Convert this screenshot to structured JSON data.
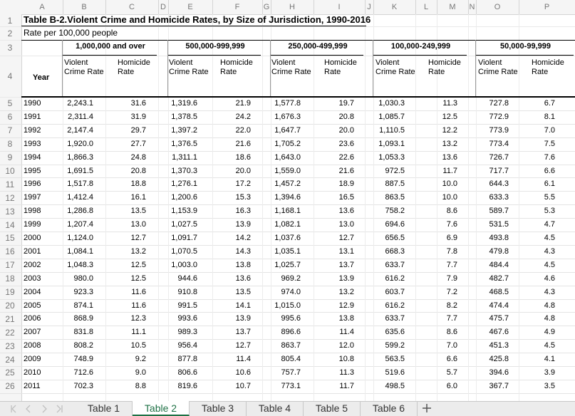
{
  "column_letters": [
    "A",
    "B",
    "C",
    "D",
    "E",
    "F",
    "G",
    "H",
    "I",
    "J",
    "K",
    "L",
    "M",
    "N",
    "O",
    "P"
  ],
  "row_numbers": [
    1,
    2,
    3,
    4,
    5,
    6,
    7,
    8,
    9,
    10,
    11,
    12,
    13,
    14,
    15,
    16,
    17,
    18,
    19,
    20,
    21,
    22,
    23,
    24,
    25,
    26
  ],
  "table": {
    "title": "Table B-2.Violent Crime and Homicide Rates, by Size of Jurisdiction, 1990-2016",
    "subtitle": "Rate per 100,000 people",
    "year_header": "Year",
    "groups": [
      {
        "label": "1,000,000 and over",
        "columns": [
          "Violent Crime Rate",
          "Homicide Rate"
        ]
      },
      {
        "label": "500,000-999,999",
        "columns": [
          "Violent Crime Rate",
          "Homicide Rate"
        ]
      },
      {
        "label": "250,000-499,999",
        "columns": [
          "Violent Crime Rate",
          "Homicide Rate"
        ]
      },
      {
        "label": "100,000-249,999",
        "columns": [
          "Violent Crime Rate",
          "Homicide Rate"
        ]
      },
      {
        "label": "50,000-99,999",
        "columns": [
          "Violent Crime Rate",
          "Homicide Rate"
        ]
      }
    ],
    "rows": [
      [
        "1990",
        "2,243.1",
        "31.6",
        "1,319.6",
        "21.9",
        "1,577.8",
        "19.7",
        "1,030.3",
        "11.3",
        "727.8",
        "6.7"
      ],
      [
        "1991",
        "2,311.4",
        "31.9",
        "1,378.5",
        "24.2",
        "1,676.3",
        "20.8",
        "1,085.7",
        "12.5",
        "772.9",
        "8.1"
      ],
      [
        "1992",
        "2,147.4",
        "29.7",
        "1,397.2",
        "22.0",
        "1,647.7",
        "20.0",
        "1,110.5",
        "12.2",
        "773.9",
        "7.0"
      ],
      [
        "1993",
        "1,920.0",
        "27.7",
        "1,376.5",
        "21.6",
        "1,705.2",
        "23.6",
        "1,093.1",
        "13.2",
        "773.4",
        "7.5"
      ],
      [
        "1994",
        "1,866.3",
        "24.8",
        "1,311.1",
        "18.6",
        "1,643.0",
        "22.6",
        "1,053.3",
        "13.6",
        "726.7",
        "7.6"
      ],
      [
        "1995",
        "1,691.5",
        "20.8",
        "1,370.3",
        "20.0",
        "1,559.0",
        "21.6",
        "972.5",
        "11.7",
        "717.7",
        "6.6"
      ],
      [
        "1996",
        "1,517.8",
        "18.8",
        "1,276.1",
        "17.2",
        "1,457.2",
        "18.9",
        "887.5",
        "10.0",
        "644.3",
        "6.1"
      ],
      [
        "1997",
        "1,412.4",
        "16.1",
        "1,200.6",
        "15.3",
        "1,394.6",
        "16.5",
        "863.5",
        "10.0",
        "633.3",
        "5.5"
      ],
      [
        "1998",
        "1,286.8",
        "13.5",
        "1,153.9",
        "16.3",
        "1,168.1",
        "13.6",
        "758.2",
        "8.6",
        "589.7",
        "5.3"
      ],
      [
        "1999",
        "1,207.4",
        "13.0",
        "1,027.5",
        "13.9",
        "1,082.1",
        "13.0",
        "694.6",
        "7.6",
        "531.5",
        "4.7"
      ],
      [
        "2000",
        "1,124.0",
        "12.7",
        "1,091.7",
        "14.2",
        "1,037.6",
        "12.7",
        "656.5",
        "6.9",
        "493.8",
        "4.5"
      ],
      [
        "2001",
        "1,084.1",
        "13.2",
        "1,070.5",
        "14.3",
        "1,035.1",
        "13.1",
        "668.3",
        "7.8",
        "479.8",
        "4.3"
      ],
      [
        "2002",
        "1,048.3",
        "12.5",
        "1,003.0",
        "13.8",
        "1,025.7",
        "13.7",
        "633.7",
        "7.7",
        "484.4",
        "4.5"
      ],
      [
        "2003",
        "980.0",
        "12.5",
        "944.6",
        "13.6",
        "969.2",
        "13.9",
        "616.2",
        "7.9",
        "482.7",
        "4.6"
      ],
      [
        "2004",
        "923.3",
        "11.6",
        "910.8",
        "13.5",
        "974.0",
        "13.2",
        "603.7",
        "7.2",
        "468.5",
        "4.3"
      ],
      [
        "2005",
        "874.1",
        "11.6",
        "991.5",
        "14.1",
        "1,015.0",
        "12.9",
        "616.2",
        "8.2",
        "474.4",
        "4.8"
      ],
      [
        "2006",
        "868.9",
        "12.3",
        "993.6",
        "13.9",
        "995.6",
        "13.8",
        "633.7",
        "7.7",
        "475.7",
        "4.8"
      ],
      [
        "2007",
        "831.8",
        "11.1",
        "989.3",
        "13.7",
        "896.6",
        "11.4",
        "635.6",
        "8.6",
        "467.6",
        "4.9"
      ],
      [
        "2008",
        "808.2",
        "10.5",
        "956.4",
        "12.7",
        "863.7",
        "12.0",
        "599.2",
        "7.0",
        "451.3",
        "4.5"
      ],
      [
        "2009",
        "748.9",
        "9.2",
        "877.8",
        "11.4",
        "805.4",
        "10.8",
        "563.5",
        "6.6",
        "425.8",
        "4.1"
      ],
      [
        "2010",
        "712.6",
        "9.0",
        "806.6",
        "10.6",
        "757.7",
        "11.3",
        "519.6",
        "5.7",
        "394.6",
        "3.9"
      ],
      [
        "2011",
        "702.3",
        "8.8",
        "819.6",
        "10.7",
        "773.1",
        "11.7",
        "498.5",
        "6.0",
        "367.7",
        "3.5"
      ]
    ]
  },
  "tabs": [
    "Table 1",
    "Table 2",
    "Table 3",
    "Table 4",
    "Table 5",
    "Table 6"
  ],
  "active_tab": 1
}
